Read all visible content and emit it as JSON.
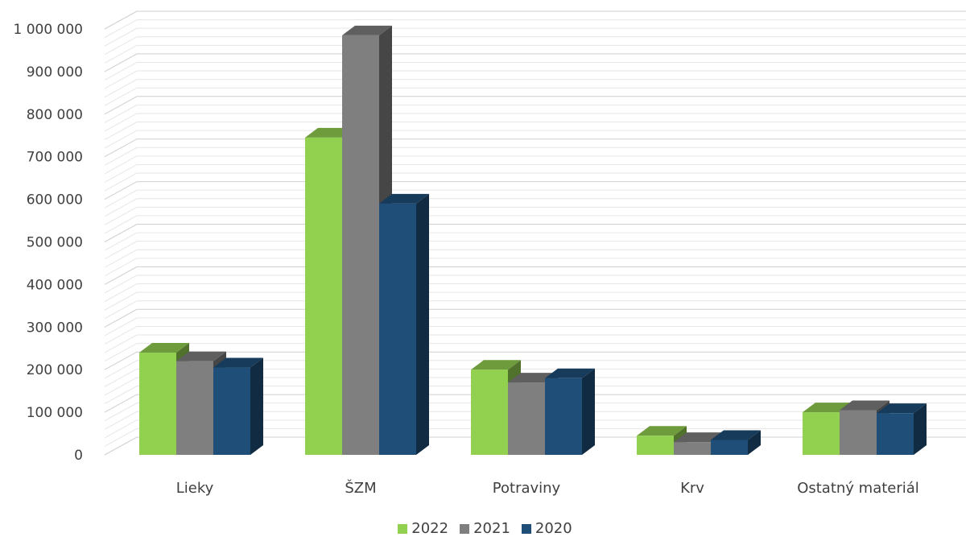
{
  "chart_data": {
    "type": "bar",
    "categories": [
      "Lieky",
      "ŠZM",
      "Potraviny",
      "Krv",
      "Ostatný materiál"
    ],
    "series": [
      {
        "name": "2022",
        "color": "#92d050",
        "values": [
          240000,
          745000,
          200000,
          45000,
          100000
        ]
      },
      {
        "name": "2021",
        "color": "#7f7f7f",
        "values": [
          220000,
          985000,
          170000,
          30000,
          105000
        ]
      },
      {
        "name": "2020",
        "color": "#1f4e79",
        "values": [
          205000,
          590000,
          180000,
          35000,
          98000
        ]
      }
    ],
    "ylim": [
      0,
      1000000
    ],
    "yticks": [
      0,
      100000,
      200000,
      300000,
      400000,
      500000,
      600000,
      700000,
      800000,
      900000,
      1000000
    ],
    "ytick_labels": [
      "0",
      "100 000",
      "200 000",
      "300 000",
      "400 000",
      "500 000",
      "600 000",
      "700 000",
      "800 000",
      "900 000",
      "1 000 000"
    ],
    "grid": true,
    "style": "3d clustered column",
    "legend_position": "bottom",
    "title": "",
    "xlabel": "",
    "ylabel": ""
  }
}
